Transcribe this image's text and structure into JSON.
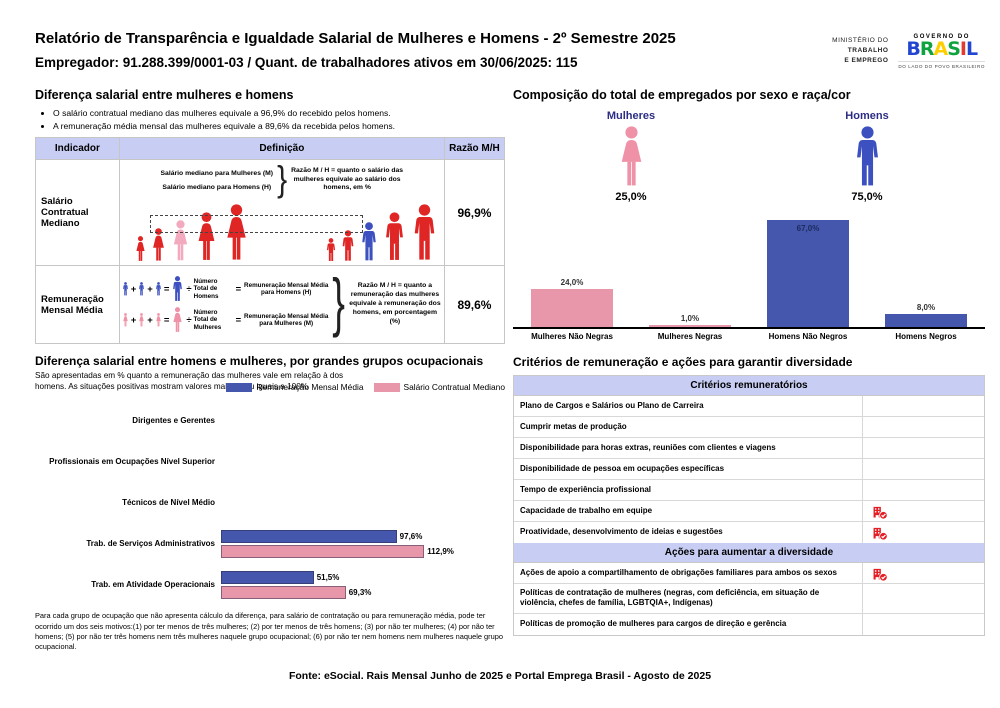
{
  "header": {
    "title": "Relatório de Transparência e Igualdade Salarial de Mulheres e Homens - 2º Semestre 2025",
    "subtitle": "Empregador: 91.288.399/0001-03 / Quant. de trabalhadores ativos em 30/06/2025: 115",
    "ministry_line1": "MINISTÉRIO DO",
    "ministry_line2": "TRABALHO",
    "ministry_line3": "E EMPREGO",
    "gov_top": "GOVERNO DO",
    "gov_name": "BRASIL",
    "gov_bottom": "DO LADO DO POVO BRASILEIRO"
  },
  "salary_gap": {
    "title": "Diferença salarial entre mulheres e homens",
    "bullets": [
      "O salário contratual mediano das mulheres equivale a 96,9% do recebido pelos homens.",
      "A remuneração média mensal das mulheres equivale a 89,6% da recebida pelos homens."
    ],
    "table": {
      "headers": [
        "Indicador",
        "Definição",
        "Razão M/H"
      ],
      "rows": [
        {
          "indicator": "Salário Contratual Mediano",
          "ratio": "96,9%",
          "line_women": "Salário mediano para Mulheres (M)",
          "line_men": "Salário mediano para Homens (H)",
          "note": "Razão M / H = quanto o salário das mulheres equivale ao salário dos homens, em %"
        },
        {
          "indicator": "Remuneração Mensal Média",
          "ratio": "89,6%",
          "men_divisor": "Número Total de Homens",
          "men_result": "Remuneração Mensal Média para Homens (H)",
          "women_divisor": "Número Total de Mulheres",
          "women_result": "Remuneração Mensal Média para Mulheres (M)",
          "note": "Razão M / H = quanto a remuneração das mulheres equivale à remuneração dos homens, em porcentagem (%)"
        }
      ]
    }
  },
  "composition": {
    "title": "Composição do total de empregados por sexo e raça/cor",
    "women_label": "Mulheres",
    "women_pct": "25,0%",
    "men_label": "Homens",
    "men_pct": "75,0%"
  },
  "occupation_gap": {
    "title": "Diferença salarial entre homens e mulheres, por grandes grupos ocupacionais",
    "subtitle": "São apresentadas em % quanto a remuneração das mulheres vale em relação à dos homens. As situações positivas mostram valores maiores ou iguais a 100%",
    "legend": [
      {
        "label": "Remuneração Mensal Média",
        "color": "#4457ac"
      },
      {
        "label": "Salário Contratual Mediano",
        "color": "#e897aa"
      }
    ],
    "footnote": "Para cada grupo de ocupação que não apresenta cálculo da diferença, para salário de contratação ou para remuneração média, pode ter ocorrido um dos seis motivos:(1) por ter menos de três mulheres; (2) por ter menos de três homens; (3) por não ter mulheres; (4) por não ter homens; (5) por não ter três homens nem três mulheres naquele grupo ocupacional; (6) por não ter nem homens nem mulheres naquele grupo ocupacional."
  },
  "criteria": {
    "title": "Critérios de remuneração e ações para garantir diversidade",
    "section1_header": "Critérios remuneratórios",
    "section1_rows": [
      {
        "label": "Plano de Cargos e Salários ou Plano de Carreira",
        "checked": false
      },
      {
        "label": "Cumprir metas de produção",
        "checked": false
      },
      {
        "label": "Disponibilidade para horas extras, reuniões com clientes e viagens",
        "checked": false
      },
      {
        "label": "Disponibilidade de pessoa em ocupações específicas",
        "checked": false
      },
      {
        "label": "Tempo de experiência profissional",
        "checked": false
      },
      {
        "label": "Capacidade de trabalho em equipe",
        "checked": true
      },
      {
        "label": "Proatividade, desenvolvimento de ideias e sugestões",
        "checked": true
      }
    ],
    "section2_header": "Ações para aumentar a diversidade",
    "section2_rows": [
      {
        "label": "Ações de apoio a compartilhamento de obrigações familiares para ambos os sexos",
        "checked": true
      },
      {
        "label": "Políticas de contratação de mulheres (negras, com deficiência, em situação de violência, chefes de família, LGBTQIA+, Indígenas)",
        "checked": false
      },
      {
        "label": "Políticas de promoção de mulheres para cargos de direção e gerência",
        "checked": false
      }
    ]
  },
  "footer": "Fonte: eSocial. Rais Mensal Junho de 2025 e Portal Emprega Brasil - Agosto de 2025",
  "chart_data": [
    {
      "type": "bar",
      "title": "Composição do total de empregados por sexo e raça/cor",
      "categories": [
        "Mulheres Não Negras",
        "Mulheres Negras",
        "Homens Não Negros",
        "Homens Negros"
      ],
      "values": [
        24.0,
        1.0,
        67.0,
        8.0
      ],
      "labels": [
        "24,0%",
        "1,0%",
        "67,0%",
        "8,0%"
      ],
      "colors": [
        "#e897aa",
        "#e897aa",
        "#4457ac",
        "#4457ac"
      ],
      "xlabel": "",
      "ylabel": "",
      "ylim": [
        0,
        70
      ],
      "grid": false,
      "legend": false
    },
    {
      "type": "bar-horizontal",
      "title": "Diferença salarial entre homens e mulheres, por grandes grupos ocupacionais",
      "categories": [
        "Dirigentes e Gerentes",
        "Profissionais em Ocupações Nível Superior",
        "Técnicos de Nível Médio",
        "Trab. de Serviços Administrativos",
        "Trab. em Atividade Operacionais"
      ],
      "series": [
        {
          "name": "Remuneração Mensal Média",
          "color": "#4457ac",
          "values": [
            null,
            null,
            null,
            97.6,
            51.5
          ],
          "labels": [
            "",
            "",
            "",
            "97,6%",
            "51,5%"
          ]
        },
        {
          "name": "Salário Contratual Mediano",
          "color": "#e897aa",
          "values": [
            null,
            null,
            null,
            112.9,
            69.3
          ],
          "labels": [
            "",
            "",
            "",
            "112,9%",
            "69,3%"
          ]
        }
      ],
      "xlim": [
        0,
        120
      ],
      "grid": false,
      "legend_position": "top-right"
    }
  ]
}
